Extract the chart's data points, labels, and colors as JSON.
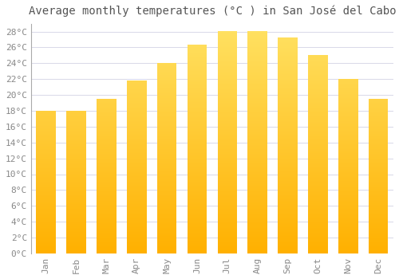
{
  "months": [
    "Jan",
    "Feb",
    "Mar",
    "Apr",
    "May",
    "Jun",
    "Jul",
    "Aug",
    "Sep",
    "Oct",
    "Nov",
    "Dec"
  ],
  "temperatures": [
    18,
    18,
    19.5,
    21.8,
    24,
    26.3,
    28,
    28,
    27.2,
    25,
    22,
    19.5
  ],
  "bar_color_top": "#FFB800",
  "bar_color_bottom": "#FFD878",
  "title": "Average monthly temperatures (°C ) in San José del Cabo",
  "ylim": [
    0,
    29
  ],
  "ytick_max": 28,
  "ytick_step": 2,
  "background_color": "#ffffff",
  "grid_color": "#d8d8e8",
  "title_fontsize": 10,
  "tick_fontsize": 8,
  "bar_width": 0.65,
  "gradient_steps": 200
}
